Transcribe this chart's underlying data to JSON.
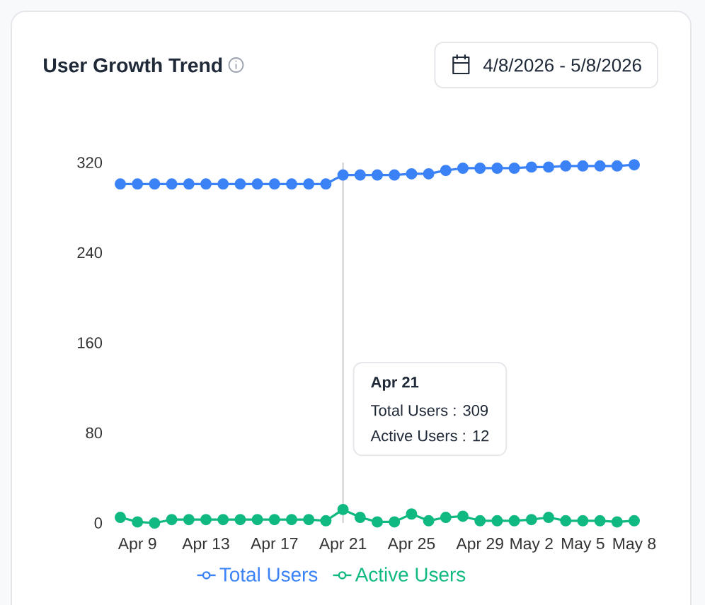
{
  "chart_data": {
    "type": "line",
    "title": "User Growth Trend",
    "subtitle": "4/8/2026 - 5/8/2026",
    "categories": [
      null,
      "Apr 9",
      null,
      null,
      null,
      "Apr 13",
      null,
      null,
      null,
      "Apr 17",
      null,
      null,
      null,
      "Apr 21",
      null,
      null,
      null,
      "Apr 25",
      null,
      null,
      null,
      "Apr 29",
      null,
      null,
      "May 2",
      null,
      null,
      "May 5",
      null,
      null,
      "May 8"
    ],
    "series": [
      {
        "name": "Total Users",
        "color": "#3b82f6",
        "values": [
          301,
          301,
          301,
          301,
          301,
          301,
          301,
          301,
          301,
          301,
          301,
          301,
          301,
          309,
          309,
          309,
          309,
          310,
          310,
          313,
          315,
          315,
          315,
          315,
          316,
          316,
          317,
          317,
          317,
          317,
          318
        ]
      },
      {
        "name": "Active Users",
        "color": "#10b981",
        "values": [
          5,
          1,
          0,
          3,
          3,
          3,
          3,
          3,
          3,
          3,
          3,
          3,
          2,
          12,
          5,
          1,
          1,
          8,
          2,
          5,
          6,
          2,
          2,
          2,
          3,
          5,
          2,
          2,
          2,
          1,
          2
        ]
      }
    ],
    "ylim": [
      0,
      320
    ],
    "yticks": [
      0,
      80,
      160,
      240,
      320
    ],
    "marker": "circle",
    "legend": "bottom",
    "ref_lines": [
      {
        "axis": "x",
        "value": "Apr 21",
        "color": "#cccccc"
      }
    ],
    "annotations": [
      "Apr 21",
      "Total Users : 309",
      "Active Users : 12"
    ]
  }
}
